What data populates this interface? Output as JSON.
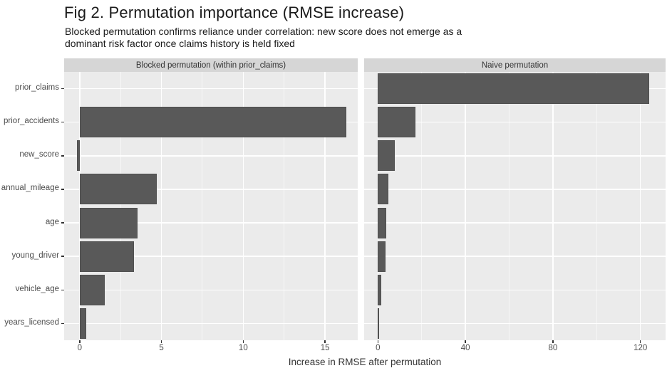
{
  "header": {
    "title": "Fig 2. Permutation importance (RMSE increase)",
    "subtitle_line1": "Blocked permutation confirms reliance under correlation: new score does not emerge as a",
    "subtitle_line2": "dominant risk factor once claims history is held fixed"
  },
  "chart_data": {
    "type": "bar",
    "orientation": "horizontal",
    "xlabel": "Increase in RMSE after permutation",
    "categories": [
      "prior_claims",
      "prior_accidents",
      "new_score",
      "annual_mileage",
      "age",
      "young_driver",
      "vehicle_age",
      "years_licensed"
    ],
    "facets": [
      {
        "label": "Blocked permutation (within prior_claims)",
        "values": [
          0,
          16.3,
          -0.15,
          4.7,
          3.55,
          3.3,
          1.55,
          0.4
        ],
        "x_ticks": [
          0,
          5,
          10,
          15
        ],
        "x_minor_ticks": [
          2.5,
          7.5,
          12.5
        ],
        "xlim": [
          -0.95,
          17.0
        ]
      },
      {
        "label": "Naive permutation",
        "values": [
          124,
          17,
          7.6,
          4.8,
          3.7,
          3.4,
          1.5,
          0.4
        ],
        "x_ticks": [
          0,
          40,
          80,
          120
        ],
        "x_minor_ticks": [
          20,
          60,
          100
        ],
        "xlim": [
          -6.3,
          131.5
        ]
      }
    ],
    "legend": "none",
    "grid": true,
    "colors": {
      "bar_fill": "#595959",
      "bar_border": "#505050",
      "panel_bg": "#EBEBEB",
      "strip_bg": "#D6D6D6",
      "grid_line": "#FFFFFF",
      "axis_text": "#4D4D4D",
      "strip_text": "#333333",
      "title_text": "#1A1A1A",
      "tick_mark": "#333333",
      "background": "#FFFFFF"
    }
  }
}
